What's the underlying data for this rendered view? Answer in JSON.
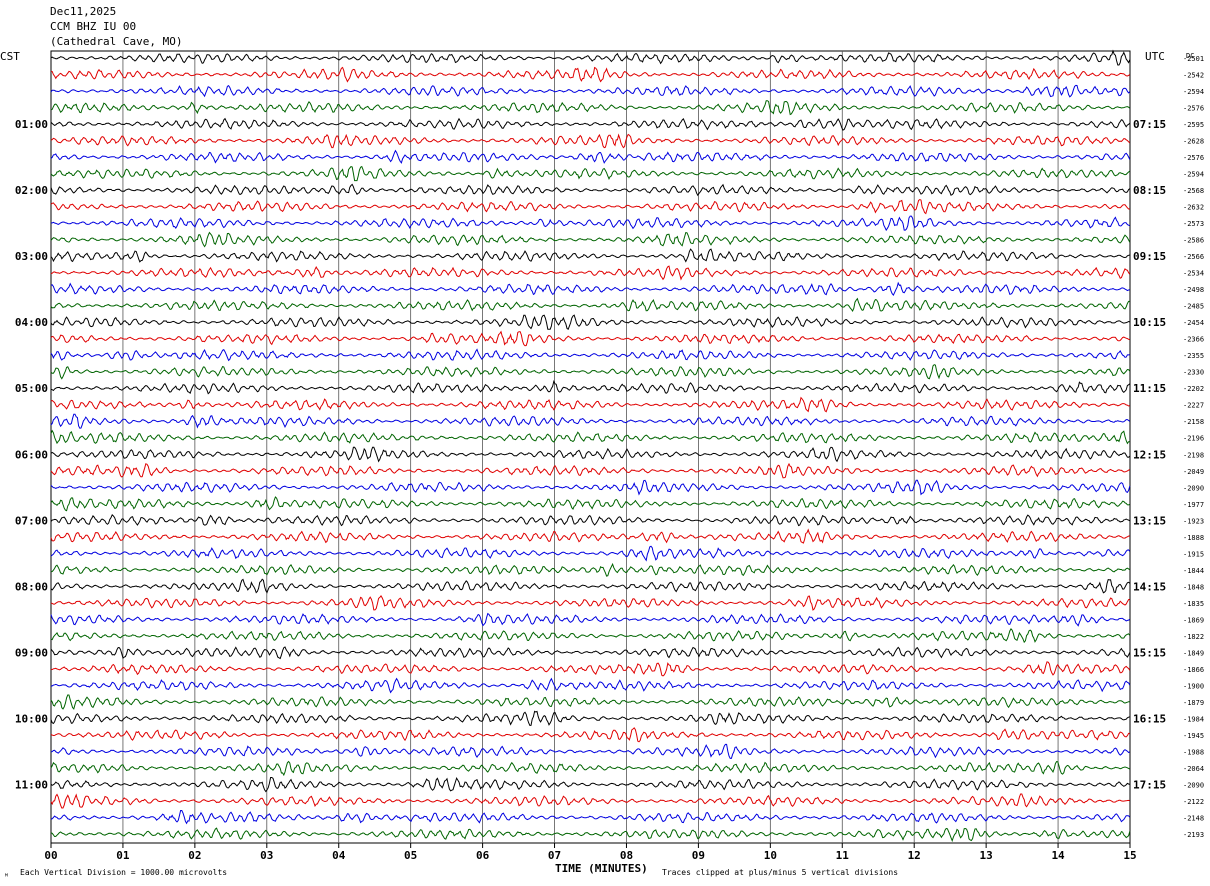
{
  "header": {
    "date": "Dec11,2025",
    "channel": "CCM BHZ IU 00",
    "location": "(Cathedral Cave, MO)"
  },
  "left_timezone": "CST",
  "right_timezone": "UTC",
  "right_corner_label": "DC",
  "footer": {
    "scale_note": "Each Vertical Division = 1000.00 microvolts",
    "x_axis_title": "TIME (MINUTES)",
    "clip_note": "Traces clipped at plus/minus 5 vertical divisions",
    "corner_mark": "ᴹ"
  },
  "colors": {
    "trace_cycle": [
      "#000000",
      "#e00000",
      "#0000e0",
      "#006400"
    ],
    "grid": "#000000",
    "background": "#ffffff"
  },
  "chart_data": {
    "type": "line",
    "title": "",
    "xlabel": "TIME (MINUTES)",
    "ylabel": "",
    "x_ticks": [
      "00",
      "01",
      "02",
      "03",
      "04",
      "05",
      "06",
      "07",
      "08",
      "09",
      "10",
      "11",
      "12",
      "13",
      "14",
      "15"
    ],
    "xlim": [
      0,
      15
    ],
    "trace_count": 48,
    "traces_per_hour": 4,
    "left_hour_labels": [
      "",
      "01:00",
      "02:00",
      "03:00",
      "04:00",
      "05:00",
      "06:00",
      "07:00",
      "08:00",
      "09:00",
      "10:00",
      "11:00"
    ],
    "right_hour_labels": [
      "",
      "07:15",
      "08:15",
      "09:15",
      "10:15",
      "11:15",
      "12:15",
      "13:15",
      "14:15",
      "15:15",
      "16:15",
      "17:15"
    ],
    "dc_offsets": [
      "-2501",
      "-2542",
      "-2594",
      "-2576",
      "-2595",
      "-2628",
      "-2576",
      "-2594",
      "-2568",
      "-2632",
      "-2573",
      "-2586",
      "-2566",
      "-2534",
      "-2498",
      "-2485",
      "-2454",
      "-2366",
      "-2355",
      "-2330",
      "-2202",
      "-2227",
      "-2158",
      "-2196",
      "-2198",
      "-2049",
      "-2090",
      "-1977",
      "-1923",
      "-1888",
      "-1915",
      "-1844",
      "-1848",
      "-1835",
      "-1869",
      "-1822",
      "-1849",
      "-1866",
      "-1900",
      "-1879",
      "-1984",
      "-1945",
      "-1988",
      "-2064",
      "-2090",
      "-2122",
      "-2148",
      "-2193"
    ],
    "grid": true,
    "scale_microvolts_per_division": 1000.0,
    "clip_divisions": 5
  }
}
